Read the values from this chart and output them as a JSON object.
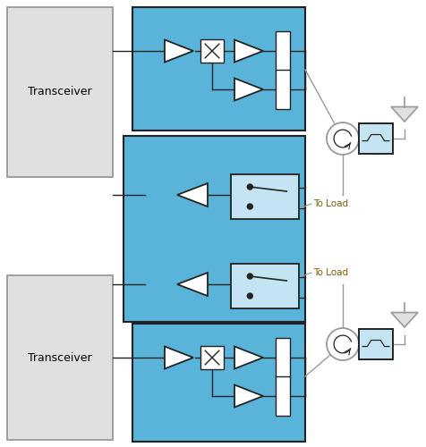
{
  "bg_color": "#ffffff",
  "blue_fill": "#5ab4d9",
  "light_blue_fill": "#c5e4f3",
  "gray_fill": "#e0e0e0",
  "dark_outline": "#222222",
  "gray_outline": "#999999",
  "transceiver_label": "Transceiver",
  "to_load_label": "To Load",
  "fig_width": 4.76,
  "fig_height": 5.0,
  "dpi": 100
}
